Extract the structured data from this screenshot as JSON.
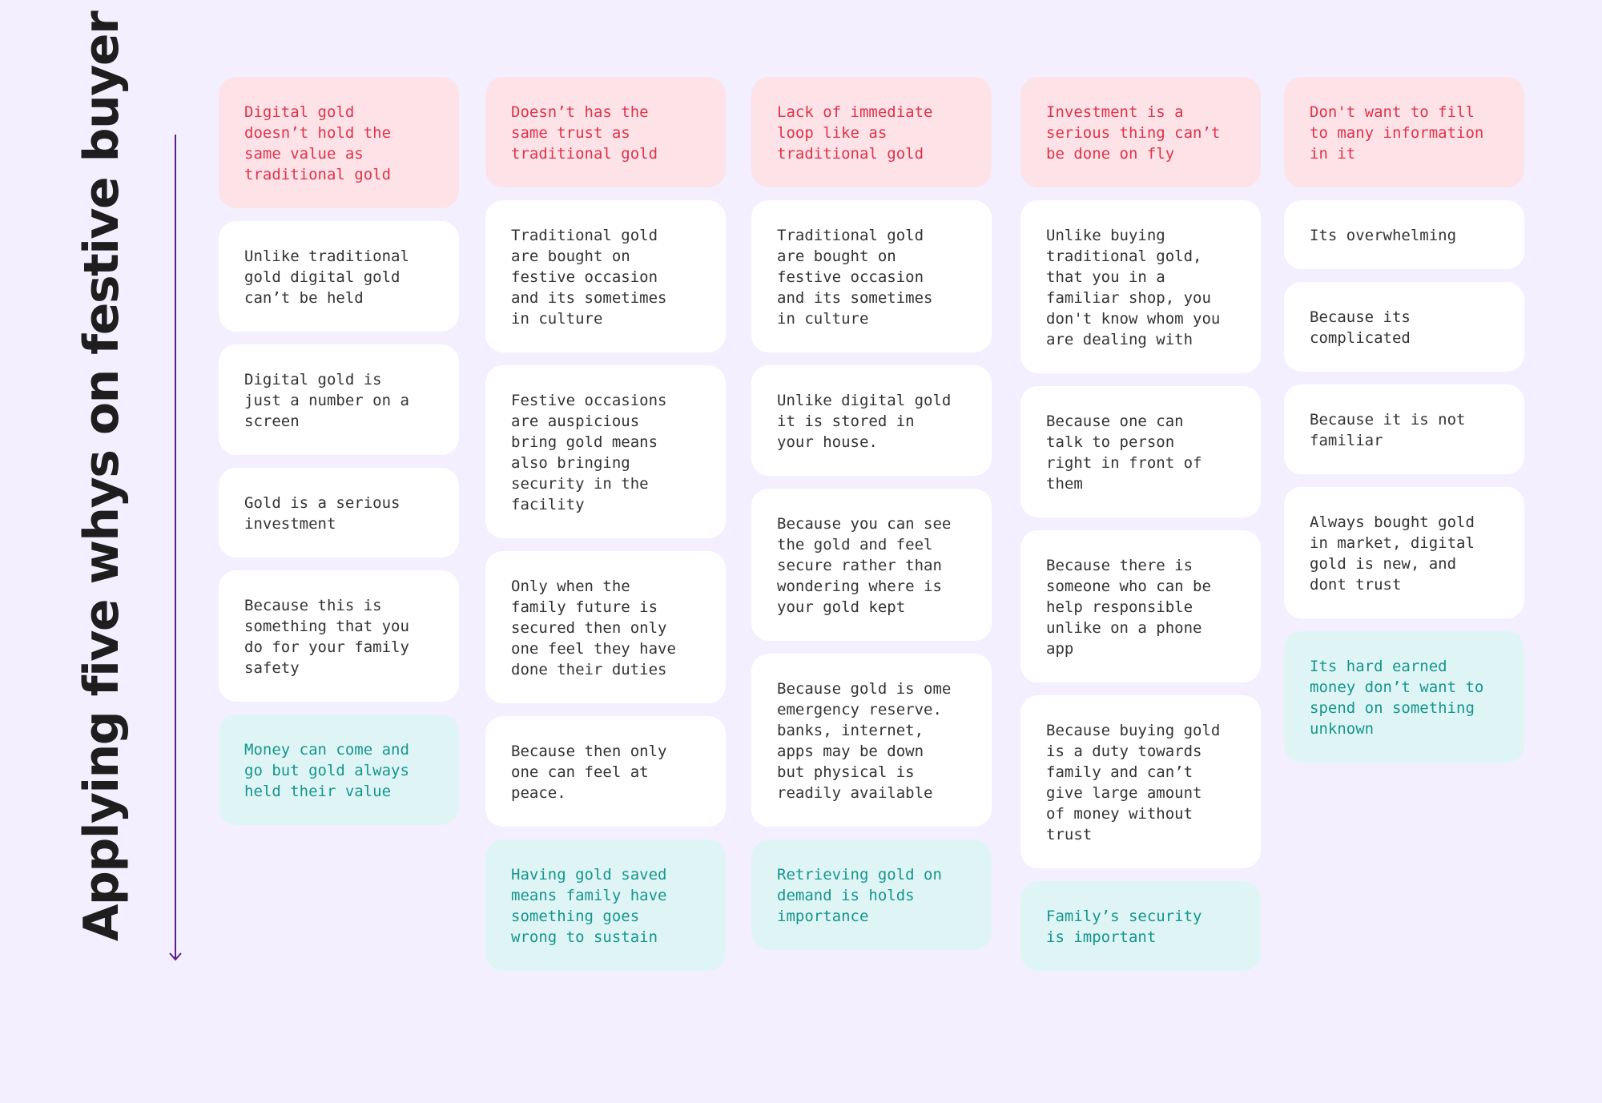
{
  "title": "Applying five whys on festive buyer",
  "colors": {
    "background": "#f4effe",
    "problem_card": "#fde3e7",
    "problem_text": "#e0324a",
    "why_card": "#ffffff",
    "why_text": "#333333",
    "root_card": "#dff5f5",
    "root_text": "#15958c",
    "arrow": "#5a1f8c"
  },
  "columns": [
    {
      "problem": "Digital gold\ndoesn’t hold the\nsame value as\ntraditional gold",
      "whys": [
        "Unlike traditional\ngold digital gold\ncan’t be held",
        "Digital gold is\njust a number on a\nscreen",
        "Gold is a serious\ninvestment",
        "Because this is\nsomething that you\ndo for your family\nsafety"
      ],
      "root": "Money can come and\ngo but gold always\nheld their value"
    },
    {
      "problem": "Doesn’t has the\nsame trust as\ntraditional gold",
      "whys": [
        "Traditional gold\nare bought on\nfestive occasion\nand its sometimes\nin culture",
        "Festive occasions\nare auspicious\nbring gold means\nalso bringing\nsecurity in the\nfacility",
        "Only when the\nfamily future is\nsecured then only\none feel they have\ndone their duties",
        "Because then only\none can feel at\npeace."
      ],
      "root": "Having gold saved\nmeans family have\nsomething goes\nwrong to sustain"
    },
    {
      "problem": "Lack of immediate\nloop like as\ntraditional gold",
      "whys": [
        "Traditional gold\nare bought on\nfestive occasion\nand its sometimes\nin culture",
        "Unlike digital gold\nit is stored in\nyour house.",
        "Because you can see\nthe gold and feel\nsecure rather than\nwondering where is\nyour gold kept",
        "Because gold is ome\nemergency reserve.\nbanks, internet,\napps may be down\nbut physical is\nreadily available"
      ],
      "root": "Retrieving gold on\ndemand is holds\nimportance"
    },
    {
      "problem": "Investment is a\nserious thing can’t\nbe done on fly",
      "whys": [
        "Unlike buying\ntraditional gold,\nthat you in a\nfamiliar shop, you\ndon't know whom you\nare dealing with",
        "Because one can\ntalk to person\nright in front of\nthem",
        "Because there is\nsomeone who can be\nhelp responsible\nunlike on a phone\napp",
        "Because buying gold\nis a duty towards\nfamily and can’t\ngive large amount\nof money without\ntrust"
      ],
      "root": "Family’s security\nis important"
    },
    {
      "problem": "Don't want to fill\nto many information\nin it",
      "whys": [
        "Its overwhelming",
        "Because its\ncomplicated",
        "Because it is not\nfamiliar",
        "Always bought gold\nin market, digital\ngold is new, and\ndont trust"
      ],
      "root": "Its hard earned\nmoney don’t want to\nspend on something\nunknown"
    }
  ]
}
